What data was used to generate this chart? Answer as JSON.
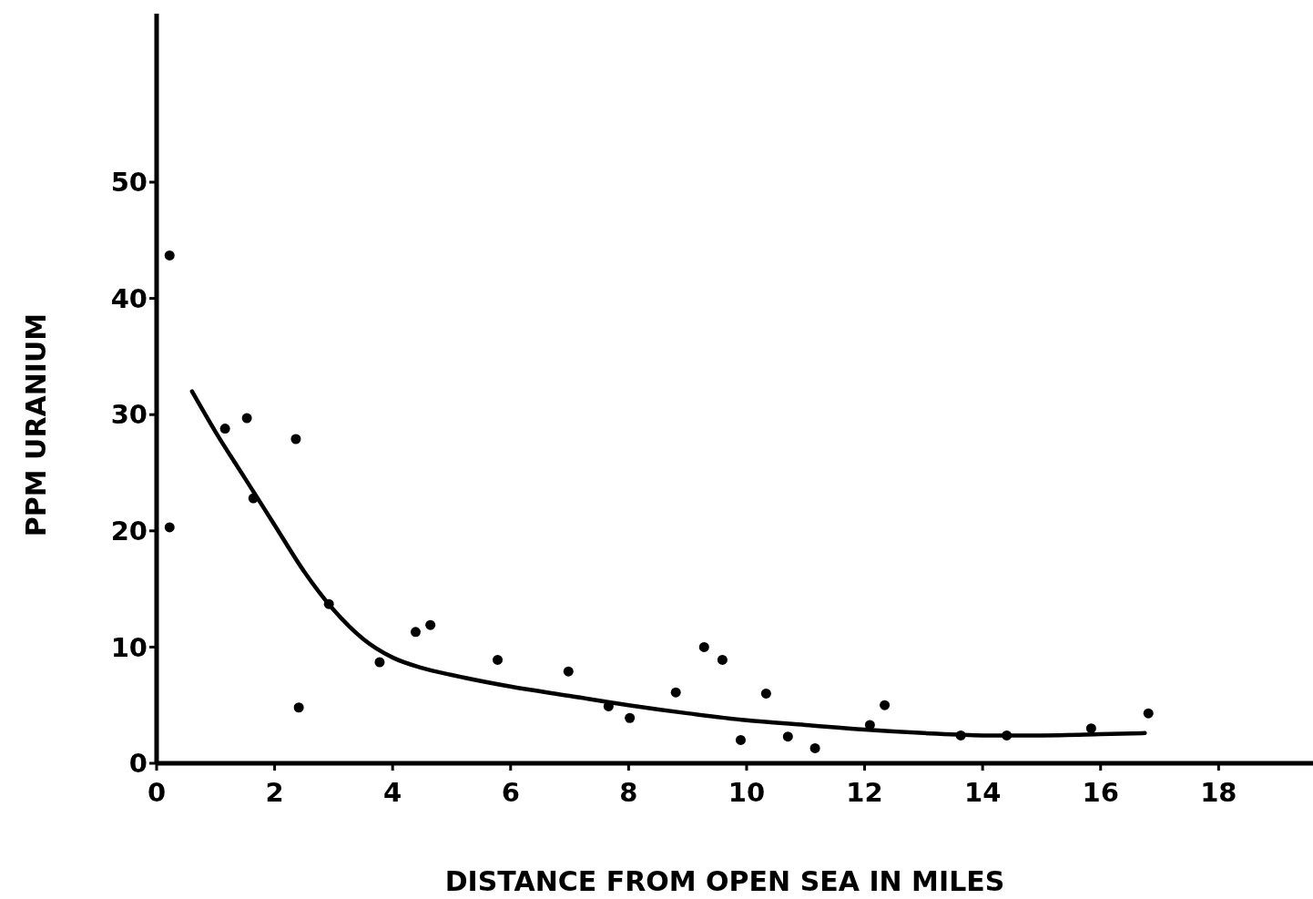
{
  "chart_data": {
    "type": "scatter",
    "xlabel": "DISTANCE FROM OPEN SEA IN MILES",
    "ylabel": "PPM URANIUM",
    "xlim": [
      0,
      19.6
    ],
    "ylim": [
      0,
      64.5
    ],
    "xticks": [
      0,
      2,
      4,
      6,
      8,
      10,
      12,
      14,
      16,
      18
    ],
    "yticks": [
      0,
      10,
      20,
      30,
      40,
      50
    ],
    "grid": false,
    "series": [
      {
        "color": "#000000",
        "marker": "circle",
        "x": [
          0.22,
          0.22,
          1.16,
          1.53,
          1.64,
          2.36,
          2.41,
          2.92,
          3.78,
          4.39,
          4.64,
          5.78,
          6.98,
          7.66,
          8.02,
          8.8,
          9.28,
          9.59,
          9.9,
          10.33,
          10.7,
          11.16,
          12.09,
          12.34,
          13.63,
          14.41,
          15.84,
          16.81
        ],
        "values": [
          43.7,
          20.3,
          28.8,
          29.7,
          22.8,
          27.9,
          4.8,
          13.7,
          8.7,
          11.3,
          11.9,
          8.9,
          7.9,
          4.9,
          3.9,
          6.1,
          10,
          8.9,
          2,
          6,
          2.3,
          1.3,
          3.3,
          5,
          2.4,
          2.4,
          3,
          4.3
        ]
      },
      {
        "type": "line",
        "color": "#000000",
        "line_style": "solid",
        "marker": "none",
        "x": [
          0.6,
          1,
          1.5,
          2,
          2.5,
          3,
          3.5,
          4,
          4.5,
          5,
          6,
          7,
          8,
          9,
          10,
          11,
          12,
          13,
          14,
          15,
          16,
          16.75
        ],
        "values": [
          32,
          28.5,
          24.5,
          20.5,
          16.5,
          13.2,
          10.7,
          9.1,
          8.2,
          7.6,
          6.6,
          5.8,
          5,
          4.3,
          3.7,
          3.3,
          2.9,
          2.6,
          2.4,
          2.4,
          2.5,
          2.6
        ]
      }
    ]
  }
}
